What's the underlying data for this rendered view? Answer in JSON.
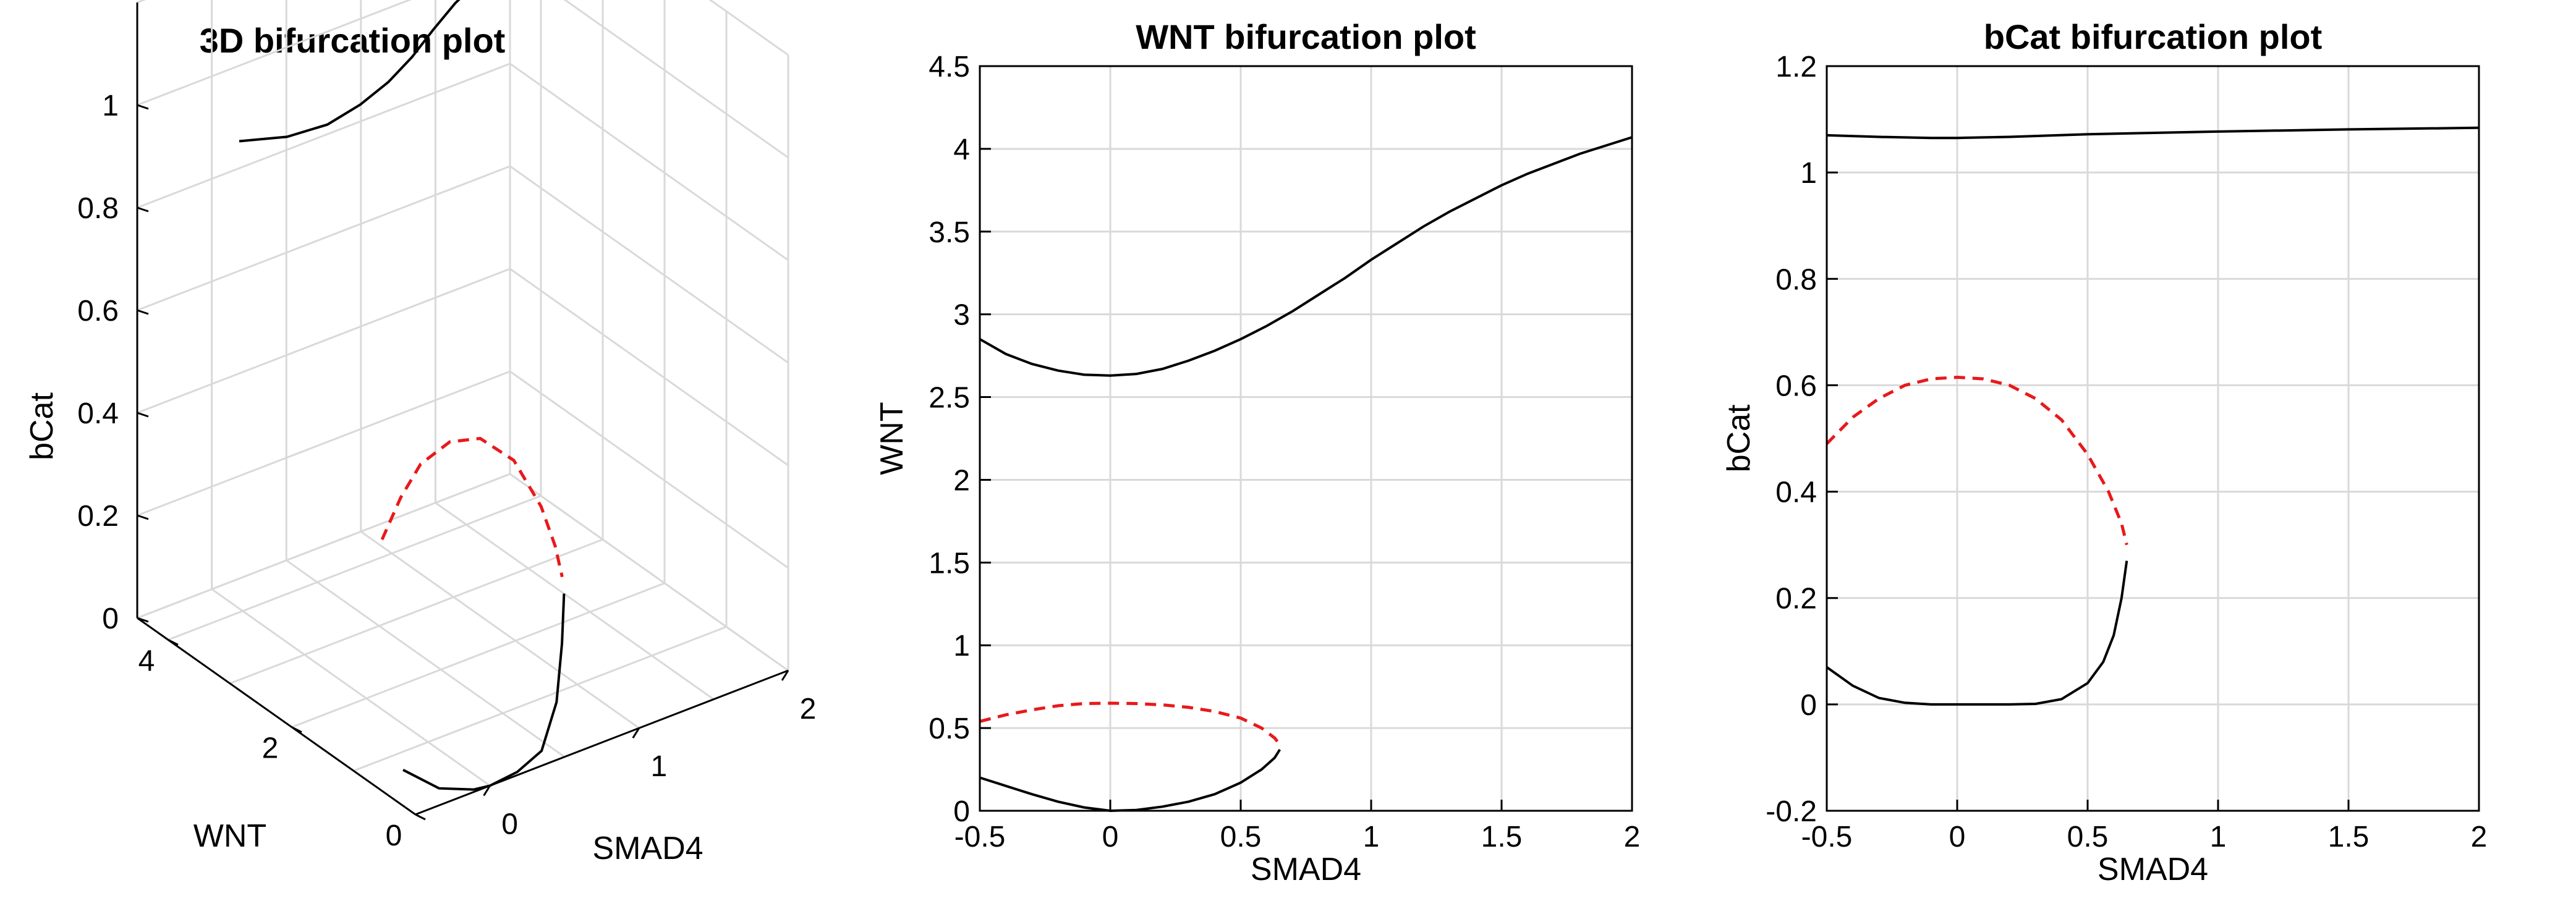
{
  "chart_data": [
    {
      "type": "line3d",
      "title": "3D bifurcation plot",
      "xlabel": "SMAD4",
      "ylabel": "WNT",
      "zlabel": "bCat",
      "xlim": [
        -0.5,
        2
      ],
      "ylim": [
        0,
        4.5
      ],
      "zlim": [
        0,
        1.2
      ],
      "xticks": [
        {
          "v": 0,
          "label": "0"
        },
        {
          "v": 1,
          "label": "1"
        },
        {
          "v": 2,
          "label": "2"
        }
      ],
      "yticks": [
        {
          "v": 0,
          "label": "0"
        },
        {
          "v": 2,
          "label": "2"
        },
        {
          "v": 4,
          "label": "4"
        }
      ],
      "zticks": [
        {
          "v": 0,
          "label": "0"
        },
        {
          "v": 0.2,
          "label": "0.2"
        },
        {
          "v": 0.4,
          "label": "0.4"
        },
        {
          "v": 0.6,
          "label": "0.6"
        },
        {
          "v": 0.8,
          "label": "0.8"
        },
        {
          "v": 1,
          "label": "1"
        }
      ],
      "grid": true,
      "series": [
        {
          "style": "solid",
          "color": "#000000",
          "points": [
            [
              -0.5,
              2.85,
              1.07
            ],
            [
              -0.25,
              2.68,
              1.065
            ],
            [
              0,
              2.63,
              1.065
            ],
            [
              0.25,
              2.7,
              1.07
            ],
            [
              0.5,
              2.85,
              1.073
            ],
            [
              0.75,
              3.07,
              1.075
            ],
            [
              1,
              3.33,
              1.078
            ],
            [
              1.25,
              3.58,
              1.08
            ],
            [
              1.5,
              3.78,
              1.082
            ],
            [
              1.75,
              3.94,
              1.083
            ],
            [
              2,
              4.07,
              1.084
            ]
          ]
        },
        {
          "style": "dashed",
          "color": "#e8191b",
          "points": [
            [
              -0.5,
              0.54,
              0.49
            ],
            [
              -0.35,
              0.6,
              0.55
            ],
            [
              -0.2,
              0.64,
              0.595
            ],
            [
              0,
              0.65,
              0.615
            ],
            [
              0.2,
              0.64,
              0.6
            ],
            [
              0.4,
              0.58,
              0.54
            ],
            [
              0.55,
              0.5,
              0.44
            ],
            [
              0.62,
              0.44,
              0.36
            ],
            [
              0.65,
              0.4,
              0.3
            ]
          ]
        },
        {
          "style": "solid",
          "color": "#000000",
          "points": [
            [
              -0.5,
              0.2,
              0.07
            ],
            [
              -0.3,
              0.1,
              0.02
            ],
            [
              -0.1,
              0.02,
              0.002
            ],
            [
              0,
              0,
              0
            ],
            [
              0.2,
              0.04,
              0.001
            ],
            [
              0.4,
              0.13,
              0.012
            ],
            [
              0.55,
              0.25,
              0.08
            ],
            [
              0.62,
              0.33,
              0.18
            ],
            [
              0.65,
              0.37,
              0.27
            ]
          ]
        }
      ]
    },
    {
      "type": "line",
      "title": "WNT bifurcation plot",
      "xlabel": "SMAD4",
      "ylabel": "WNT",
      "xlim": [
        -0.5,
        2
      ],
      "ylim": [
        0,
        4.5
      ],
      "xticks": [
        {
          "v": -0.5,
          "label": "-0.5"
        },
        {
          "v": 0,
          "label": "0"
        },
        {
          "v": 0.5,
          "label": "0.5"
        },
        {
          "v": 1,
          "label": "1"
        },
        {
          "v": 1.5,
          "label": "1.5"
        },
        {
          "v": 2,
          "label": "2"
        }
      ],
      "yticks": [
        {
          "v": 0,
          "label": "0"
        },
        {
          "v": 0.5,
          "label": "0.5"
        },
        {
          "v": 1,
          "label": "1"
        },
        {
          "v": 1.5,
          "label": "1.5"
        },
        {
          "v": 2,
          "label": "2"
        },
        {
          "v": 2.5,
          "label": "2.5"
        },
        {
          "v": 3,
          "label": "3"
        },
        {
          "v": 3.5,
          "label": "3.5"
        },
        {
          "v": 4,
          "label": "4"
        },
        {
          "v": 4.5,
          "label": "4.5"
        }
      ],
      "grid": true,
      "series": [
        {
          "style": "solid",
          "color": "#000000",
          "points": [
            [
              -0.5,
              2.85
            ],
            [
              -0.4,
              2.76
            ],
            [
              -0.3,
              2.7
            ],
            [
              -0.2,
              2.66
            ],
            [
              -0.1,
              2.635
            ],
            [
              0,
              2.63
            ],
            [
              0.1,
              2.64
            ],
            [
              0.2,
              2.67
            ],
            [
              0.3,
              2.72
            ],
            [
              0.4,
              2.78
            ],
            [
              0.5,
              2.85
            ],
            [
              0.6,
              2.93
            ],
            [
              0.7,
              3.02
            ],
            [
              0.8,
              3.12
            ],
            [
              0.9,
              3.22
            ],
            [
              1,
              3.33
            ],
            [
              1.1,
              3.43
            ],
            [
              1.2,
              3.53
            ],
            [
              1.3,
              3.62
            ],
            [
              1.4,
              3.7
            ],
            [
              1.5,
              3.78
            ],
            [
              1.6,
              3.85
            ],
            [
              1.7,
              3.91
            ],
            [
              1.8,
              3.97
            ],
            [
              1.9,
              4.02
            ],
            [
              2,
              4.07
            ]
          ]
        },
        {
          "style": "dashed",
          "color": "#e8191b",
          "points": [
            [
              -0.5,
              0.54
            ],
            [
              -0.4,
              0.58
            ],
            [
              -0.3,
              0.61
            ],
            [
              -0.2,
              0.635
            ],
            [
              -0.1,
              0.648
            ],
            [
              0,
              0.65
            ],
            [
              0.1,
              0.648
            ],
            [
              0.2,
              0.64
            ],
            [
              0.3,
              0.625
            ],
            [
              0.4,
              0.6
            ],
            [
              0.5,
              0.56
            ],
            [
              0.58,
              0.5
            ],
            [
              0.63,
              0.44
            ],
            [
              0.65,
              0.4
            ]
          ]
        },
        {
          "style": "solid",
          "color": "#000000",
          "points": [
            [
              -0.5,
              0.2
            ],
            [
              -0.4,
              0.15
            ],
            [
              -0.3,
              0.1
            ],
            [
              -0.2,
              0.055
            ],
            [
              -0.1,
              0.02
            ],
            [
              0,
              0
            ],
            [
              0.1,
              0.005
            ],
            [
              0.2,
              0.025
            ],
            [
              0.3,
              0.055
            ],
            [
              0.4,
              0.1
            ],
            [
              0.5,
              0.17
            ],
            [
              0.58,
              0.25
            ],
            [
              0.63,
              0.32
            ],
            [
              0.65,
              0.37
            ]
          ]
        }
      ]
    },
    {
      "type": "line",
      "title": "bCat bifurcation plot",
      "xlabel": "SMAD4",
      "ylabel": "bCat",
      "xlim": [
        -0.5,
        2
      ],
      "ylim": [
        -0.2,
        1.2
      ],
      "xticks": [
        {
          "v": -0.5,
          "label": "-0.5"
        },
        {
          "v": 0,
          "label": "0"
        },
        {
          "v": 0.5,
          "label": "0.5"
        },
        {
          "v": 1,
          "label": "1"
        },
        {
          "v": 1.5,
          "label": "1.5"
        },
        {
          "v": 2,
          "label": "2"
        }
      ],
      "yticks": [
        {
          "v": -0.2,
          "label": "-0.2"
        },
        {
          "v": 0,
          "label": "0"
        },
        {
          "v": 0.2,
          "label": "0.2"
        },
        {
          "v": 0.4,
          "label": "0.4"
        },
        {
          "v": 0.6,
          "label": "0.6"
        },
        {
          "v": 0.8,
          "label": "0.8"
        },
        {
          "v": 1,
          "label": "1"
        },
        {
          "v": 1.2,
          "label": "1.2"
        }
      ],
      "grid": true,
      "series": [
        {
          "style": "solid",
          "color": "#000000",
          "points": [
            [
              -0.5,
              1.07
            ],
            [
              -0.3,
              1.067
            ],
            [
              -0.1,
              1.065
            ],
            [
              0,
              1.065
            ],
            [
              0.2,
              1.067
            ],
            [
              0.5,
              1.072
            ],
            [
              1,
              1.077
            ],
            [
              1.5,
              1.081
            ],
            [
              2,
              1.084
            ]
          ]
        },
        {
          "style": "dashed",
          "color": "#e8191b",
          "points": [
            [
              -0.5,
              0.49
            ],
            [
              -0.4,
              0.54
            ],
            [
              -0.3,
              0.575
            ],
            [
              -0.2,
              0.6
            ],
            [
              -0.1,
              0.612
            ],
            [
              0,
              0.615
            ],
            [
              0.1,
              0.612
            ],
            [
              0.2,
              0.6
            ],
            [
              0.3,
              0.575
            ],
            [
              0.4,
              0.535
            ],
            [
              0.5,
              0.47
            ],
            [
              0.58,
              0.4
            ],
            [
              0.63,
              0.34
            ],
            [
              0.65,
              0.3
            ]
          ]
        },
        {
          "style": "solid",
          "color": "#000000",
          "points": [
            [
              -0.5,
              0.07
            ],
            [
              -0.4,
              0.035
            ],
            [
              -0.3,
              0.012
            ],
            [
              -0.2,
              0.003
            ],
            [
              -0.1,
              0
            ],
            [
              0,
              0
            ],
            [
              0.1,
              0
            ],
            [
              0.2,
              0
            ],
            [
              0.3,
              0.001
            ],
            [
              0.4,
              0.01
            ],
            [
              0.5,
              0.04
            ],
            [
              0.56,
              0.08
            ],
            [
              0.6,
              0.13
            ],
            [
              0.63,
              0.2
            ],
            [
              0.65,
              0.27
            ]
          ]
        }
      ]
    }
  ]
}
